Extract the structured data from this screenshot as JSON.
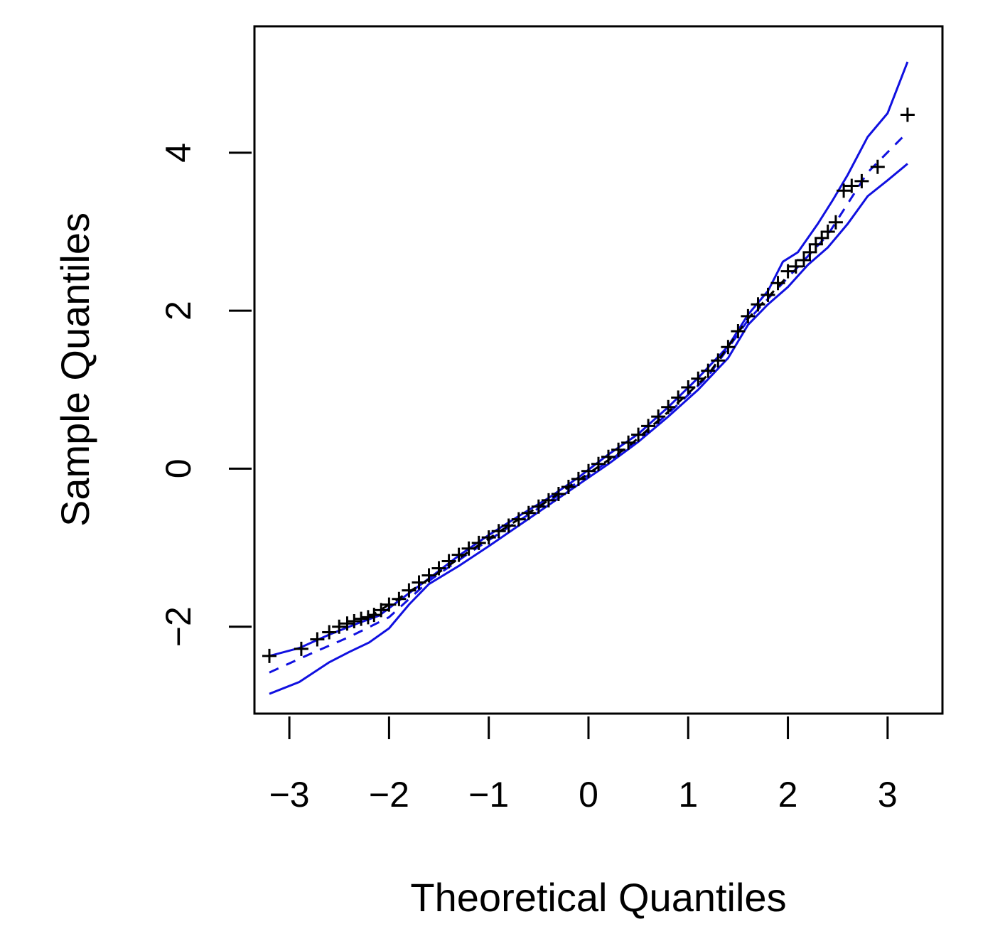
{
  "chart_data": {
    "type": "scatter",
    "title": "",
    "xlabel": "Theoretical Quantiles",
    "ylabel": "Sample Quantiles",
    "xlim": [
      -3.35,
      3.55
    ],
    "ylim": [
      -3.1,
      5.6
    ],
    "x_ticks": [
      -3,
      -2,
      -1,
      0,
      1,
      2,
      3
    ],
    "x_tick_labels": [
      "−3",
      "−2",
      "−1",
      "0",
      "1",
      "2",
      "3"
    ],
    "y_ticks": [
      -2,
      0,
      2,
      4
    ],
    "y_tick_labels": [
      "−2",
      "0",
      "2",
      "4"
    ],
    "grid": false,
    "legend": "none",
    "colors": {
      "points": "#000000",
      "envelope": "#1010e0",
      "reference": "#1010e0",
      "median": "#000000"
    },
    "marker": "plus",
    "series": [
      {
        "role": "points",
        "points": [
          [
            -3.2,
            -2.37
          ],
          [
            -2.88,
            -2.28
          ],
          [
            -2.72,
            -2.16
          ],
          [
            -2.6,
            -2.07
          ],
          [
            -2.5,
            -2.0
          ],
          [
            -2.42,
            -1.96
          ],
          [
            -2.35,
            -1.93
          ],
          [
            -2.28,
            -1.9
          ],
          [
            -2.21,
            -1.88
          ],
          [
            -2.15,
            -1.85
          ],
          [
            -2.08,
            -1.79
          ],
          [
            -2.0,
            -1.72
          ],
          [
            -1.9,
            -1.65
          ],
          [
            -1.8,
            -1.54
          ],
          [
            -1.7,
            -1.44
          ],
          [
            -1.6,
            -1.35
          ],
          [
            -1.5,
            -1.26
          ],
          [
            -1.4,
            -1.17
          ],
          [
            -1.3,
            -1.09
          ],
          [
            -1.2,
            -1.01
          ],
          [
            -1.1,
            -0.94
          ],
          [
            -1.0,
            -0.87
          ],
          [
            -0.9,
            -0.79
          ],
          [
            -0.8,
            -0.72
          ],
          [
            -0.7,
            -0.64
          ],
          [
            -0.6,
            -0.56
          ],
          [
            -0.5,
            -0.48
          ],
          [
            -0.4,
            -0.4
          ],
          [
            -0.3,
            -0.32
          ],
          [
            -0.2,
            -0.23
          ],
          [
            -0.1,
            -0.13
          ],
          [
            0.0,
            -0.03
          ],
          [
            0.1,
            0.06
          ],
          [
            0.2,
            0.15
          ],
          [
            0.3,
            0.24
          ],
          [
            0.4,
            0.33
          ],
          [
            0.5,
            0.43
          ],
          [
            0.6,
            0.54
          ],
          [
            0.7,
            0.66
          ],
          [
            0.8,
            0.78
          ],
          [
            0.9,
            0.9
          ],
          [
            1.0,
            1.03
          ],
          [
            1.1,
            1.14
          ],
          [
            1.2,
            1.24
          ],
          [
            1.3,
            1.37
          ],
          [
            1.4,
            1.54
          ],
          [
            1.5,
            1.74
          ],
          [
            1.6,
            1.93
          ],
          [
            1.7,
            2.08
          ],
          [
            1.8,
            2.2
          ],
          [
            1.9,
            2.35
          ],
          [
            2.0,
            2.5
          ],
          [
            2.08,
            2.56
          ],
          [
            2.16,
            2.64
          ],
          [
            2.22,
            2.74
          ],
          [
            2.28,
            2.84
          ],
          [
            2.34,
            2.92
          ],
          [
            2.4,
            3.0
          ],
          [
            2.48,
            3.12
          ],
          [
            2.56,
            3.52
          ],
          [
            2.64,
            3.58
          ],
          [
            2.74,
            3.64
          ],
          [
            2.9,
            3.82
          ],
          [
            3.2,
            4.48
          ]
        ]
      },
      {
        "role": "upper-envelope",
        "points": [
          [
            -3.2,
            -2.37
          ],
          [
            -2.9,
            -2.27
          ],
          [
            -2.6,
            -2.1
          ],
          [
            -2.3,
            -1.95
          ],
          [
            -2.1,
            -1.86
          ],
          [
            -1.9,
            -1.67
          ],
          [
            -1.6,
            -1.39
          ],
          [
            -1.3,
            -1.1
          ],
          [
            -1.0,
            -0.84
          ],
          [
            -0.7,
            -0.6
          ],
          [
            -0.4,
            -0.37
          ],
          [
            -0.1,
            -0.11
          ],
          [
            0.2,
            0.18
          ],
          [
            0.5,
            0.44
          ],
          [
            0.8,
            0.78
          ],
          [
            1.1,
            1.15
          ],
          [
            1.4,
            1.55
          ],
          [
            1.6,
            1.95
          ],
          [
            1.8,
            2.25
          ],
          [
            1.95,
            2.62
          ],
          [
            2.1,
            2.74
          ],
          [
            2.3,
            3.1
          ],
          [
            2.45,
            3.4
          ],
          [
            2.6,
            3.72
          ],
          [
            2.8,
            4.2
          ],
          [
            3.0,
            4.5
          ],
          [
            3.2,
            5.15
          ]
        ]
      },
      {
        "role": "lower-envelope",
        "points": [
          [
            -3.2,
            -2.85
          ],
          [
            -2.9,
            -2.7
          ],
          [
            -2.6,
            -2.45
          ],
          [
            -2.4,
            -2.32
          ],
          [
            -2.2,
            -2.2
          ],
          [
            -2.0,
            -2.02
          ],
          [
            -1.8,
            -1.72
          ],
          [
            -1.6,
            -1.46
          ],
          [
            -1.3,
            -1.23
          ],
          [
            -1.0,
            -0.98
          ],
          [
            -0.7,
            -0.72
          ],
          [
            -0.4,
            -0.46
          ],
          [
            -0.1,
            -0.2
          ],
          [
            0.2,
            0.06
          ],
          [
            0.5,
            0.34
          ],
          [
            0.8,
            0.66
          ],
          [
            1.1,
            1.0
          ],
          [
            1.4,
            1.4
          ],
          [
            1.6,
            1.82
          ],
          [
            1.8,
            2.08
          ],
          [
            2.0,
            2.3
          ],
          [
            2.2,
            2.58
          ],
          [
            2.4,
            2.8
          ],
          [
            2.6,
            3.1
          ],
          [
            2.8,
            3.45
          ],
          [
            3.0,
            3.65
          ],
          [
            3.2,
            3.86
          ]
        ]
      },
      {
        "role": "reference-line",
        "dashed": true,
        "points": [
          [
            -3.2,
            -2.58
          ],
          [
            -2.8,
            -2.35
          ],
          [
            -2.4,
            -2.13
          ],
          [
            -2.0,
            -1.88
          ],
          [
            -1.6,
            -1.42
          ],
          [
            -1.2,
            -1.07
          ],
          [
            -0.8,
            -0.74
          ],
          [
            -0.4,
            -0.42
          ],
          [
            0.0,
            -0.08
          ],
          [
            0.4,
            0.27
          ],
          [
            0.8,
            0.7
          ],
          [
            1.2,
            1.17
          ],
          [
            1.6,
            1.88
          ],
          [
            2.0,
            2.42
          ],
          [
            2.4,
            2.96
          ],
          [
            2.8,
            3.75
          ],
          [
            3.2,
            4.26
          ]
        ]
      },
      {
        "role": "median-line",
        "dashed": true,
        "points": [
          [
            -2.2,
            -1.88
          ],
          [
            -1.6,
            -1.4
          ],
          [
            -1.2,
            -1.05
          ],
          [
            -0.8,
            -0.72
          ],
          [
            -0.4,
            -0.4
          ],
          [
            0.0,
            -0.06
          ],
          [
            0.4,
            0.28
          ],
          [
            0.8,
            0.72
          ],
          [
            1.2,
            1.19
          ],
          [
            1.6,
            1.9
          ],
          [
            2.0,
            2.44
          ]
        ]
      }
    ]
  }
}
